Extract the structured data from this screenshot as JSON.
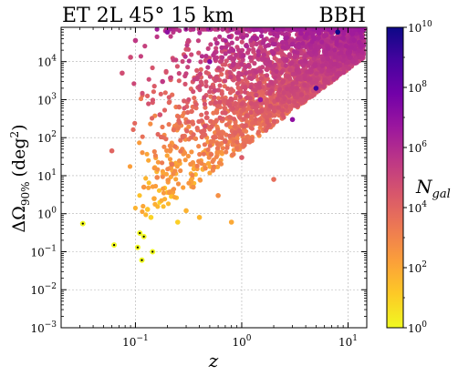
{
  "chart_data": {
    "type": "scatter",
    "title_left": "ET 2L 45° 15 km",
    "title_right": "BBH",
    "xlabel": "z",
    "ylabel": "ΔΩ90% (deg2)",
    "ylabel_parts": {
      "main": "ΔΩ",
      "sub": "90%",
      "rest_before": "(deg",
      "sup": "2",
      "rest_after": ")"
    },
    "x_scale": "log",
    "y_scale": "log",
    "xlim": [
      0.02,
      15
    ],
    "ylim": [
      0.001,
      80000
    ],
    "grid": true,
    "x_ticks": [
      {
        "value": 0.1,
        "base": "10",
        "exp": "−1"
      },
      {
        "value": 1,
        "base": "10",
        "exp": "0"
      },
      {
        "value": 10,
        "base": "10",
        "exp": "1"
      }
    ],
    "y_ticks": [
      {
        "value": 0.001,
        "base": "10",
        "exp": "−3"
      },
      {
        "value": 0.01,
        "base": "10",
        "exp": "−2"
      },
      {
        "value": 0.1,
        "base": "10",
        "exp": "−1"
      },
      {
        "value": 1,
        "base": "10",
        "exp": "0"
      },
      {
        "value": 10,
        "base": "10",
        "exp": "1"
      },
      {
        "value": 100,
        "base": "10",
        "exp": "2"
      },
      {
        "value": 1000,
        "base": "10",
        "exp": "3"
      },
      {
        "value": 10000,
        "base": "10",
        "exp": "4"
      }
    ],
    "colorbar": {
      "label_main": "N",
      "label_sub": "gal",
      "scale": "log",
      "range": [
        1,
        10000000000
      ],
      "colormap": [
        "#f0f921",
        "#fdca26",
        "#fb9f3a",
        "#ed7953",
        "#d8576b",
        "#bd3786",
        "#9c179e",
        "#7201a8",
        "#46039f",
        "#0d0887"
      ],
      "ticks": [
        {
          "value": 1,
          "base": "10",
          "exp": "0"
        },
        {
          "value": 100,
          "base": "10",
          "exp": "2"
        },
        {
          "value": 10000,
          "base": "10",
          "exp": "4"
        },
        {
          "value": 1000000,
          "base": "10",
          "exp": "6"
        },
        {
          "value": 100000000,
          "base": "10",
          "exp": "8"
        },
        {
          "value": 10000000000,
          "base": "10",
          "exp": "10"
        }
      ]
    },
    "highlighted_points": [
      {
        "x": 0.032,
        "y": 0.55,
        "n_gal": 1
      },
      {
        "x": 0.063,
        "y": 0.15,
        "n_gal": 1
      },
      {
        "x": 0.105,
        "y": 0.13,
        "n_gal": 1
      },
      {
        "x": 0.11,
        "y": 0.31,
        "n_gal": 1
      },
      {
        "x": 0.115,
        "y": 0.06,
        "n_gal": 1
      },
      {
        "x": 0.12,
        "y": 0.25,
        "n_gal": 1
      },
      {
        "x": 0.145,
        "y": 0.1,
        "n_gal": 1
      }
    ],
    "points": [
      {
        "x": 0.06,
        "y": 45,
        "n_gal": 10000
      },
      {
        "x": 0.075,
        "y": 5000,
        "n_gal": 60000
      },
      {
        "x": 0.09,
        "y": 13000,
        "n_gal": 80000
      },
      {
        "x": 0.1,
        "y": 36000,
        "n_gal": 300000
      },
      {
        "x": 0.12,
        "y": 5,
        "n_gal": 300
      },
      {
        "x": 0.13,
        "y": 1.3,
        "n_gal": 20
      },
      {
        "x": 0.14,
        "y": 0.8,
        "n_gal": 8
      },
      {
        "x": 0.15,
        "y": 2.5,
        "n_gal": 100
      },
      {
        "x": 0.16,
        "y": 9,
        "n_gal": 1000
      },
      {
        "x": 0.17,
        "y": 400,
        "n_gal": 40000
      },
      {
        "x": 0.18,
        "y": 3000,
        "n_gal": 300000
      },
      {
        "x": 0.2,
        "y": 60000,
        "n_gal": 10000000
      },
      {
        "x": 0.22,
        "y": 20,
        "n_gal": 3000
      },
      {
        "x": 0.25,
        "y": 0.6,
        "n_gal": 10
      },
      {
        "x": 0.3,
        "y": 1.2,
        "n_gal": 50
      },
      {
        "x": 0.35,
        "y": 5,
        "n_gal": 500
      },
      {
        "x": 0.4,
        "y": 0.8,
        "n_gal": 40
      },
      {
        "x": 0.45,
        "y": 200,
        "n_gal": 50000
      },
      {
        "x": 0.5,
        "y": 10000,
        "n_gal": 20000000
      },
      {
        "x": 0.6,
        "y": 3,
        "n_gal": 500
      },
      {
        "x": 0.7,
        "y": 80,
        "n_gal": 10000
      },
      {
        "x": 0.8,
        "y": 0.6,
        "n_gal": 100
      },
      {
        "x": 1,
        "y": 30,
        "n_gal": 20000
      },
      {
        "x": 1.5,
        "y": 1000,
        "n_gal": 5000000
      },
      {
        "x": 2,
        "y": 8,
        "n_gal": 5000
      },
      {
        "x": 3,
        "y": 300,
        "n_gal": 10000000
      },
      {
        "x": 5,
        "y": 2000,
        "n_gal": 1000000000
      },
      {
        "x": 8,
        "y": 60000,
        "n_gal": 10000000000
      }
    ]
  }
}
